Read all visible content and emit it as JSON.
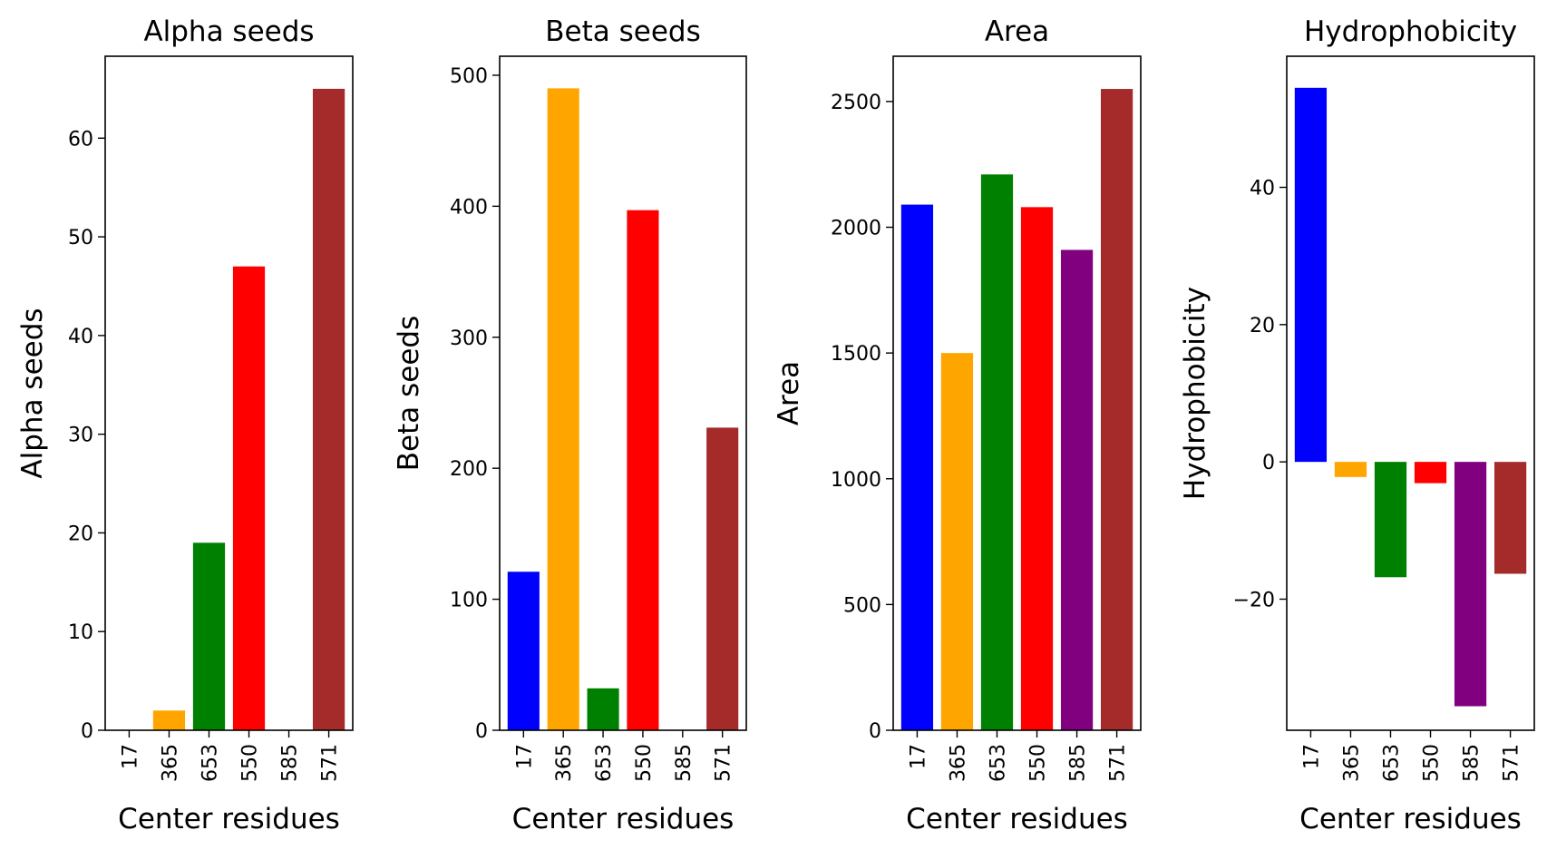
{
  "chart_data": [
    {
      "type": "bar",
      "title": "Alpha seeds",
      "xlabel": "Center residues",
      "ylabel": "Alpha seeds",
      "categories": [
        "17",
        "365",
        "653",
        "550",
        "585",
        "571"
      ],
      "values": [
        0,
        2,
        19,
        47,
        0,
        65
      ],
      "colors": [
        "#0000ff",
        "#ffa500",
        "#008000",
        "#ff0000",
        "#800080",
        "#a52a2a"
      ],
      "ylim": [
        0,
        68.3
      ],
      "yticks": [
        0,
        10,
        20,
        30,
        40,
        50,
        60
      ],
      "grid": false
    },
    {
      "type": "bar",
      "title": "Beta seeds",
      "xlabel": "Center residues",
      "ylabel": "Beta seeds",
      "categories": [
        "17",
        "365",
        "653",
        "550",
        "585",
        "571"
      ],
      "values": [
        121,
        490,
        32,
        397,
        0,
        231
      ],
      "colors": [
        "#0000ff",
        "#ffa500",
        "#008000",
        "#ff0000",
        "#800080",
        "#a52a2a"
      ],
      "ylim": [
        0,
        514.5
      ],
      "yticks": [
        0,
        100,
        200,
        300,
        400,
        500
      ],
      "grid": false
    },
    {
      "type": "bar",
      "title": "Area",
      "xlabel": "Center residues",
      "ylabel": "Area",
      "categories": [
        "17",
        "365",
        "653",
        "550",
        "585",
        "571"
      ],
      "values": [
        2090,
        1500,
        2210,
        2080,
        1910,
        2550
      ],
      "colors": [
        "#0000ff",
        "#ffa500",
        "#008000",
        "#ff0000",
        "#800080",
        "#a52a2a"
      ],
      "ylim": [
        0,
        2680
      ],
      "yticks": [
        0,
        500,
        1000,
        1500,
        2000,
        2500
      ],
      "grid": false
    },
    {
      "type": "bar",
      "title": "Hydrophobicity",
      "xlabel": "Center residues",
      "ylabel": "Hydrophobicity",
      "categories": [
        "17",
        "365",
        "653",
        "550",
        "585",
        "571"
      ],
      "values": [
        54.5,
        -2.2,
        -16.8,
        -3.1,
        -35.6,
        -16.3
      ],
      "colors": [
        "#0000ff",
        "#ffa500",
        "#008000",
        "#ff0000",
        "#800080",
        "#a52a2a"
      ],
      "ylim": [
        -39.1,
        59.1
      ],
      "yticks": [
        -20,
        0,
        20,
        40
      ],
      "ytick_labels": [
        "−20",
        "0",
        "20",
        "40"
      ],
      "grid": false
    }
  ]
}
